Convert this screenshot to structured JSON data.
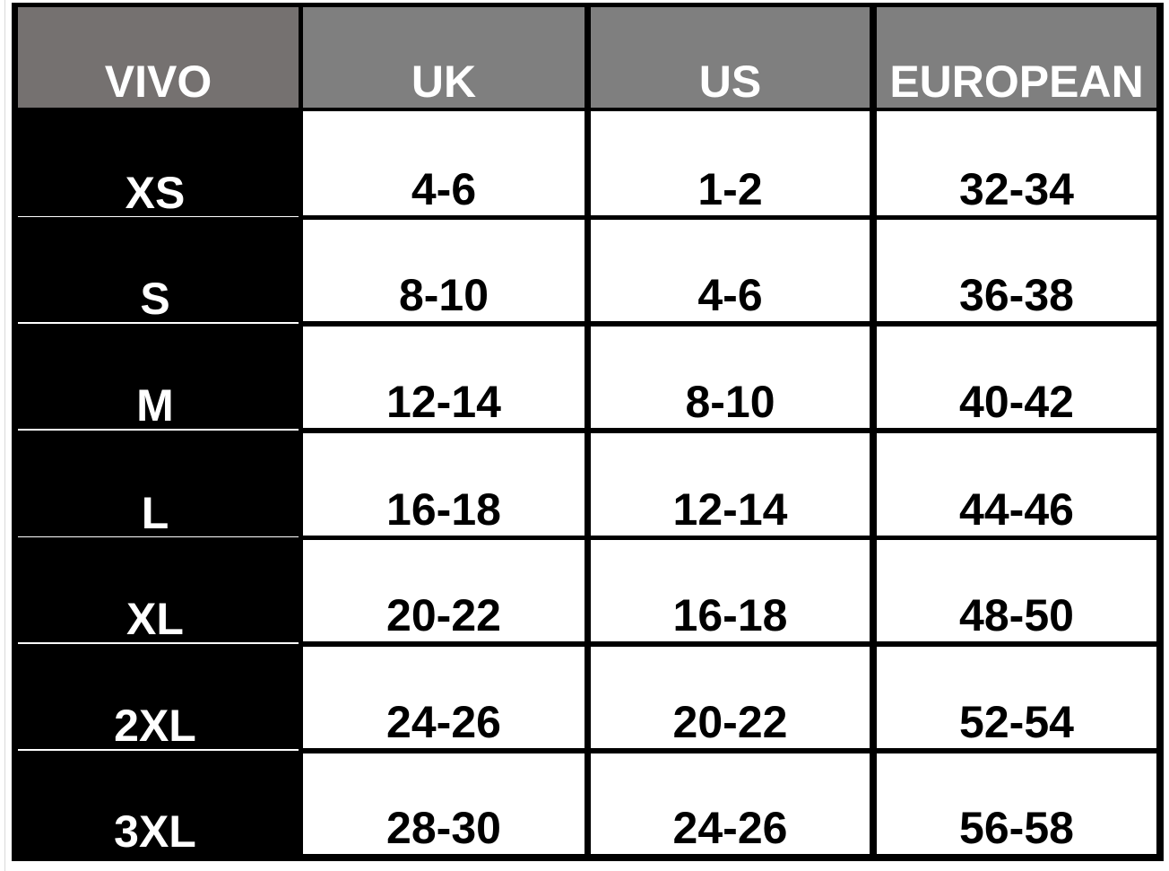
{
  "table": {
    "headers": [
      "VIVO",
      "UK",
      "US",
      "EUROPEAN"
    ],
    "rows": [
      {
        "size": "XS",
        "uk": "4-6",
        "us": "1-2",
        "european": "32-34"
      },
      {
        "size": "S",
        "uk": "8-10",
        "us": "4-6",
        "european": "36-38"
      },
      {
        "size": "M",
        "uk": "12-14",
        "us": "8-10",
        "european": "40-42"
      },
      {
        "size": "L",
        "uk": "16-18",
        "us": "12-14",
        "european": "44-46"
      },
      {
        "size": "XL",
        "uk": "20-22",
        "us": "16-18",
        "european": "48-50"
      },
      {
        "size": "2XL",
        "uk": "24-26",
        "us": "20-22",
        "european": "52-54"
      },
      {
        "size": "3XL",
        "uk": "28-30",
        "us": "24-26",
        "european": "56-58"
      }
    ]
  },
  "colors": {
    "header_first": "#757170",
    "header_other": "#7f7f7f",
    "size_column": "#000000",
    "border": "#000000"
  }
}
